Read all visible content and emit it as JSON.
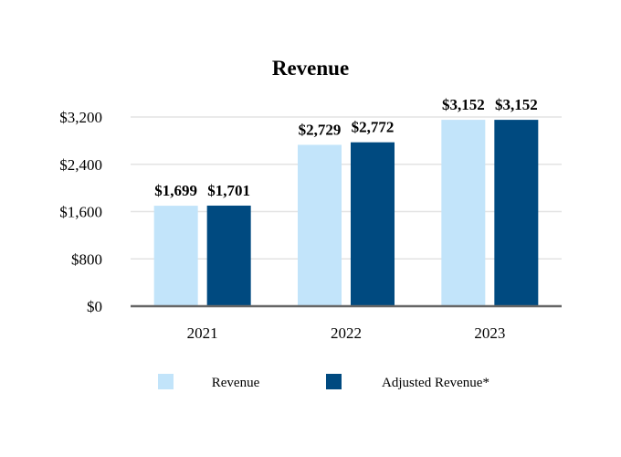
{
  "chart_data": {
    "type": "bar",
    "title": "Revenue",
    "xlabel": "",
    "ylabel": "",
    "categories": [
      "2021",
      "2022",
      "2023"
    ],
    "series": [
      {
        "name": "Revenue",
        "values": [
          1699,
          2729,
          3152
        ],
        "labels": [
          "$1,699",
          "$2,729",
          "$3,152"
        ],
        "color": "#c2e4fa"
      },
      {
        "name": "Adjusted Revenue*",
        "values": [
          1701,
          2772,
          3152
        ],
        "labels": [
          "$1,701",
          "$2,772",
          "$3,152"
        ],
        "color": "#004a80"
      }
    ],
    "ylim": [
      0,
      3200
    ],
    "yticks": [
      0,
      800,
      1600,
      2400,
      3200
    ],
    "ytick_labels": [
      "$0",
      "$800",
      "$1,600",
      "$2,400",
      "$3,200"
    ],
    "grid": true,
    "legend_position": "bottom"
  },
  "colors": {
    "gridline": "#e3e3e3",
    "axis": "#666666"
  }
}
